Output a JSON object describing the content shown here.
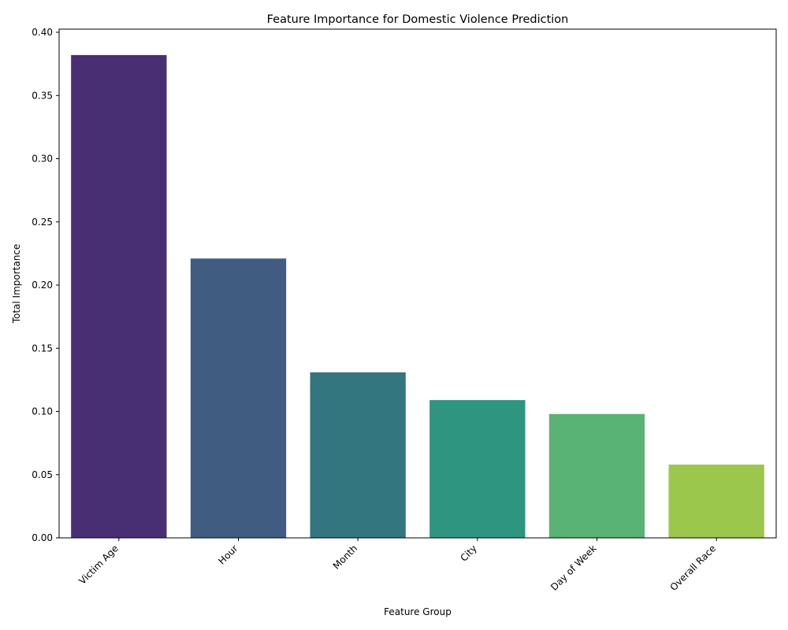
{
  "chart_data": {
    "type": "bar",
    "title": "Feature Importance for Domestic Violence Prediction",
    "xlabel": "Feature Group",
    "ylabel": "Total Importance",
    "categories": [
      "Victim Age",
      "Hour",
      "Month",
      "City",
      "Day of Week",
      "Overall Race"
    ],
    "values": [
      0.382,
      0.221,
      0.131,
      0.109,
      0.098,
      0.058
    ],
    "colors": [
      "#482f74",
      "#405d81",
      "#33767f",
      "#2e9580",
      "#58b375",
      "#9bc84c"
    ],
    "ylim": [
      0,
      0.4
    ],
    "yticks": [
      0.0,
      0.05,
      0.1,
      0.15,
      0.2,
      0.25,
      0.3,
      0.35,
      0.4
    ],
    "ytick_labels": [
      "0.00",
      "0.05",
      "0.10",
      "0.15",
      "0.20",
      "0.25",
      "0.30",
      "0.35",
      "0.40"
    ],
    "grid": false,
    "legend": "none"
  }
}
